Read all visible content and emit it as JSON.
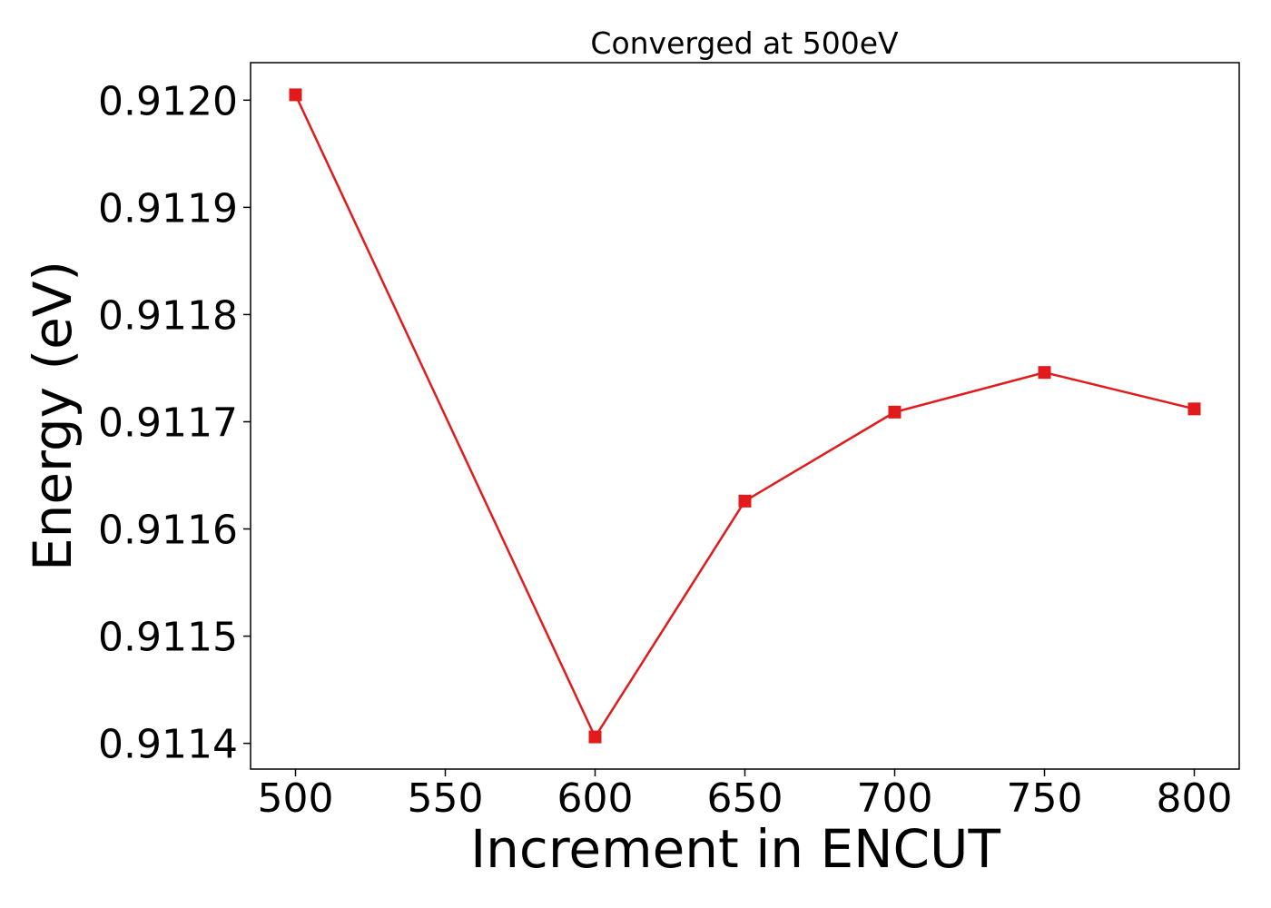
{
  "chart_data": {
    "type": "line",
    "title": "Converged at 500eV",
    "xlabel": "Increment in ENCUT",
    "ylabel": "Energy (eV)",
    "x": [
      500,
      600,
      650,
      700,
      750,
      800
    ],
    "series": [
      {
        "values": [
          0.912005,
          0.911406,
          0.911626,
          0.911709,
          0.911746,
          0.911712
        ],
        "color": "#e31a1c",
        "marker": "square"
      }
    ],
    "xticks": [
      "500",
      "550",
      "600",
      "650",
      "700",
      "750",
      "800"
    ],
    "yticks": [
      "0.9114",
      "0.9115",
      "0.9116",
      "0.9117",
      "0.9118",
      "0.9119",
      "0.9120"
    ],
    "xlim": [
      485,
      815
    ],
    "ylim": [
      0.911376,
      0.912035
    ],
    "grid": false,
    "legend": false
  }
}
